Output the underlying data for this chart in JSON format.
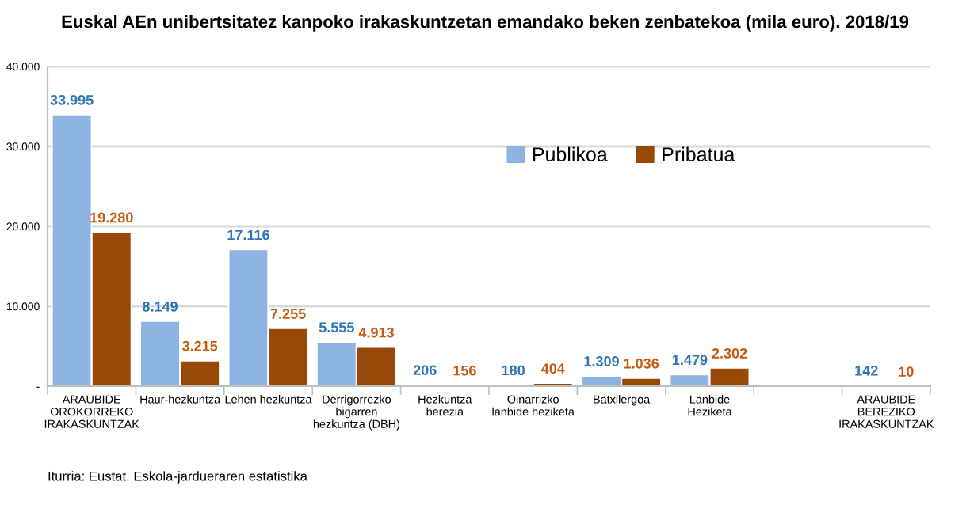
{
  "chart_data": {
    "type": "bar",
    "title": "Euskal AEn unibertsitatez kanpoko irakaskuntzetan emandako beken zenbatekoa (mila euro). 2018/19",
    "categories": [
      "ARAUBIDE\nOROKORREKO\nIRAKASKUNTZAK",
      "Haur-hezkuntza",
      "Lehen hezkuntza",
      "Derrigorrezko\nbigarren\nhezkuntza (DBH)",
      "Hezkuntza\nberezia",
      "Oinarrizko\nlanbide heziketa",
      "Batxilergoa",
      "Lanbide\nHeziketa",
      null,
      "ARAUBIDE\nBEREZIKO\nIRAKASKUNTZAK"
    ],
    "series": [
      {
        "name": "Publikoa",
        "color": "#8db3e2",
        "values": [
          33995,
          8149,
          17116,
          5555,
          206,
          180,
          1309,
          1479,
          null,
          142
        ],
        "value_labels": [
          "33.995",
          "8.149",
          "17.116",
          "5.555",
          "206",
          "180",
          "1.309",
          "1.479",
          null,
          "142"
        ]
      },
      {
        "name": "Pribatua",
        "color": "#984807",
        "values": [
          19280,
          3215,
          7255,
          4913,
          156,
          404,
          1036,
          2302,
          null,
          10
        ],
        "value_labels": [
          "19.280",
          "3.215",
          "7.255",
          "4.913",
          "156",
          "404",
          "1.036",
          "2.302",
          null,
          "10"
        ]
      }
    ],
    "ylim": [
      0,
      40000
    ],
    "yticks": [
      {
        "value": 0,
        "label": "-"
      },
      {
        "value": 10000,
        "label": "10.000"
      },
      {
        "value": 20000,
        "label": "20.000"
      },
      {
        "value": 30000,
        "label": "30.000"
      },
      {
        "value": 40000,
        "label": "40.000"
      }
    ],
    "grid": "y",
    "legend": "top",
    "annotations": [
      "Iturria: Eustat. Eskola-jardueraren estatistika"
    ]
  }
}
